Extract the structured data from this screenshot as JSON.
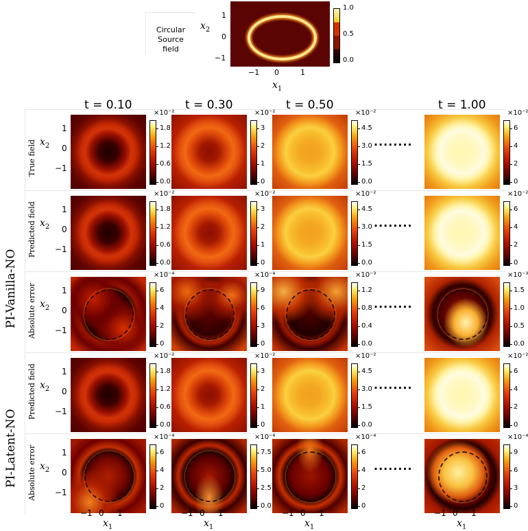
{
  "source": {
    "label_lines": [
      "Circular",
      "Source",
      "field"
    ],
    "xlabel": "x",
    "xlabel_sub": "1",
    "ylabel": "x",
    "ylabel_sub": "2",
    "xticks": [
      "−1",
      "0",
      "1"
    ],
    "yticks": [
      "1",
      "0",
      "−1"
    ],
    "cbar_ticks": [
      "1.0",
      "0.5",
      "0.0"
    ]
  },
  "columns": [
    "t = 0.10",
    "t = 0.30",
    "t = 0.50",
    "t = 1.00"
  ],
  "dots": "........",
  "group_labels": {
    "vanilla": "PI-Vanilla-NO",
    "latent": "PI-Latent-NO"
  },
  "row_labels": [
    "True field",
    "Predicted field",
    "Absolute error",
    "Predicted field",
    "Absolute error"
  ],
  "axis": {
    "x": "x",
    "x_sub": "1",
    "y": "x",
    "y_sub": "2",
    "xticks": [
      "−1",
      "0",
      "1"
    ],
    "yticks": [
      "1",
      "0",
      "−1"
    ]
  },
  "colorbars": [
    [
      {
        "exp": "×10⁻²",
        "ticks": [
          "1.8",
          "1.2",
          "0.6",
          "0.0"
        ]
      },
      {
        "exp": "×10⁻²",
        "ticks": [
          "3",
          "2",
          "1",
          "0"
        ]
      },
      {
        "exp": "×10⁻²",
        "ticks": [
          "4.5",
          "3.0",
          "1.5",
          "0.0"
        ]
      },
      {
        "exp": "×10⁻²",
        "ticks": [
          "6",
          "4",
          "2",
          "0"
        ]
      }
    ],
    [
      {
        "exp": "×10⁻²",
        "ticks": [
          "1.8",
          "1.2",
          "0.6",
          "0.0"
        ]
      },
      {
        "exp": "×10⁻²",
        "ticks": [
          "3",
          "2",
          "1",
          "0"
        ]
      },
      {
        "exp": "×10⁻²",
        "ticks": [
          "4.5",
          "3.0",
          "1.5",
          "0.0"
        ]
      },
      {
        "exp": "×10⁻²",
        "ticks": [
          "6",
          "4",
          "2",
          "0"
        ]
      }
    ],
    [
      {
        "exp": "×10⁻⁴",
        "ticks": [
          "6",
          "4",
          "2",
          "0"
        ]
      },
      {
        "exp": "×10⁻⁴",
        "ticks": [
          "9",
          "6",
          "3",
          "0"
        ]
      },
      {
        "exp": "×10⁻³",
        "ticks": [
          "1.2",
          "0.8",
          "0.4",
          "0.0"
        ]
      },
      {
        "exp": "×10⁻³",
        "ticks": [
          "1.5",
          "1.0",
          "0.5",
          "0.0"
        ]
      }
    ],
    [
      {
        "exp": "×10⁻²",
        "ticks": [
          "1.8",
          "1.2",
          "0.6",
          "0.0"
        ]
      },
      {
        "exp": "×10⁻²",
        "ticks": [
          "3",
          "2",
          "1",
          "0"
        ]
      },
      {
        "exp": "×10⁻²",
        "ticks": [
          "4.5",
          "3.0",
          "1.5",
          "0.0"
        ]
      },
      {
        "exp": "×10⁻²",
        "ticks": [
          "6",
          "4",
          "2",
          "0"
        ]
      }
    ],
    [
      {
        "exp": "×10⁻⁴",
        "ticks": [
          "6",
          "4",
          "2",
          "0"
        ]
      },
      {
        "exp": "×10⁻⁴",
        "ticks": [
          "7.5",
          "5.0",
          "2.5",
          "0.0"
        ]
      },
      {
        "exp": "×10⁻⁴",
        "ticks": [
          "6",
          "4",
          "2",
          "0"
        ]
      },
      {
        "exp": "×10⁻⁴",
        "ticks": [
          "9",
          "6",
          "3",
          "0"
        ]
      }
    ]
  ]
}
